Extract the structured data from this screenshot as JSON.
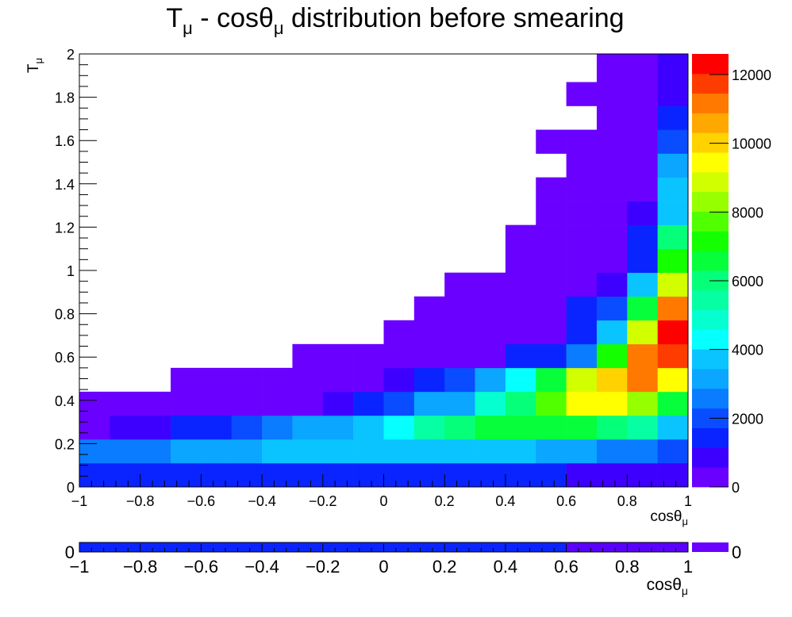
{
  "chart_data": [
    {
      "type": "heatmap",
      "title": {
        "main": "T",
        "sub1": "μ",
        "mid": " - cosθ",
        "sub2": "μ",
        "tail": " distribution before smearing"
      },
      "xlabel": {
        "main": "cosθ",
        "sub": "μ"
      },
      "ylabel": {
        "main": "T",
        "sub": "μ"
      },
      "xlim": [
        -1,
        1
      ],
      "ylim": [
        0,
        2
      ],
      "x_ticks": [
        "−1",
        "−0.8",
        "−0.6",
        "−0.4",
        "−0.2",
        "0",
        "0.2",
        "0.4",
        "0.6",
        "0.8",
        "1"
      ],
      "y_ticks": [
        "0",
        "0.2",
        "0.4",
        "0.6",
        "0.8",
        "1",
        "1.2",
        "1.4",
        "1.6",
        "1.8",
        "2"
      ],
      "x_bin_edges": [
        -1,
        -0.9,
        -0.8,
        -0.7,
        -0.6,
        -0.5,
        -0.4,
        -0.3,
        -0.2,
        -0.1,
        0,
        0.1,
        0.2,
        0.3,
        0.4,
        0.5,
        0.6,
        0.7,
        0.8,
        0.9,
        1
      ],
      "y_bin_edges": [
        0,
        0.11,
        0.22,
        0.33,
        0.44,
        0.55,
        0.66,
        0.77,
        0.88,
        0.99,
        1.1,
        1.21,
        1.32,
        1.43,
        1.54,
        1.65,
        1.76,
        1.87,
        2
      ],
      "z_range": [
        0,
        12600
      ],
      "colorbar_ticks": [
        "0",
        "2000",
        "4000",
        "6000",
        "8000",
        "10000",
        "12000"
      ],
      "z_values": [
        [
          1500,
          1500,
          1500,
          1500,
          1500,
          1500,
          1500,
          1500,
          1500,
          1500,
          1500,
          1500,
          1500,
          1500,
          1500,
          1500,
          900,
          900,
          900,
          900
        ],
        [
          2700,
          2700,
          2700,
          3300,
          3300,
          3300,
          4000,
          4000,
          4000,
          4000,
          4000,
          4000,
          4000,
          4000,
          4000,
          3100,
          3100,
          2700,
          2700,
          2100
        ],
        [
          500,
          1000,
          1000,
          1300,
          1300,
          2000,
          2800,
          3300,
          3300,
          4000,
          4500,
          5600,
          6000,
          6800,
          6800,
          6800,
          6800,
          6200,
          5600,
          4000
        ],
        [
          500,
          500,
          500,
          500,
          500,
          500,
          500,
          500,
          1000,
          1500,
          2200,
          2900,
          3300,
          4800,
          5900,
          7700,
          9500,
          9500,
          8300,
          6800
        ],
        [
          0,
          0,
          0,
          500,
          500,
          500,
          500,
          500,
          500,
          500,
          1000,
          1300,
          2000,
          3300,
          4400,
          6300,
          9000,
          10300,
          11000,
          9500
        ],
        [
          0,
          0,
          0,
          0,
          0,
          0,
          0,
          500,
          500,
          500,
          500,
          500,
          500,
          500,
          1200,
          1600,
          2800,
          7000,
          11000,
          11800
        ],
        [
          0,
          0,
          0,
          0,
          0,
          0,
          0,
          0,
          0,
          0,
          500,
          500,
          500,
          500,
          500,
          500,
          1200,
          3900,
          8900,
          12300
        ],
        [
          0,
          0,
          0,
          0,
          0,
          0,
          0,
          0,
          0,
          0,
          0,
          500,
          500,
          500,
          500,
          500,
          1200,
          1800,
          6300,
          10900
        ],
        [
          0,
          0,
          0,
          0,
          0,
          0,
          0,
          0,
          0,
          0,
          0,
          0,
          500,
          500,
          500,
          500,
          500,
          900,
          3800,
          8900
        ],
        [
          0,
          0,
          0,
          0,
          0,
          0,
          0,
          0,
          0,
          0,
          0,
          0,
          0,
          0,
          500,
          500,
          500,
          500,
          1700,
          7000
        ],
        [
          0,
          0,
          0,
          0,
          0,
          0,
          0,
          0,
          0,
          0,
          0,
          0,
          0,
          0,
          500,
          500,
          500,
          500,
          1200,
          5900
        ],
        [
          0,
          0,
          0,
          0,
          0,
          0,
          0,
          0,
          0,
          0,
          0,
          0,
          0,
          0,
          0,
          500,
          500,
          500,
          900,
          4000
        ],
        [
          0,
          0,
          0,
          0,
          0,
          0,
          0,
          0,
          0,
          0,
          0,
          0,
          0,
          0,
          0,
          500,
          500,
          500,
          500,
          3900
        ],
        [
          0,
          0,
          0,
          0,
          0,
          0,
          0,
          0,
          0,
          0,
          0,
          0,
          0,
          0,
          0,
          0,
          500,
          500,
          500,
          2900
        ],
        [
          0,
          0,
          0,
          0,
          0,
          0,
          0,
          0,
          0,
          0,
          0,
          0,
          0,
          0,
          0,
          500,
          500,
          500,
          500,
          1800
        ],
        [
          0,
          0,
          0,
          0,
          0,
          0,
          0,
          0,
          0,
          0,
          0,
          0,
          0,
          0,
          0,
          0,
          0,
          500,
          500,
          1200
        ],
        [
          0,
          0,
          0,
          0,
          0,
          0,
          0,
          0,
          0,
          0,
          0,
          0,
          0,
          0,
          0,
          0,
          500,
          500,
          500,
          800
        ],
        [
          0,
          0,
          0,
          0,
          0,
          0,
          0,
          0,
          0,
          0,
          0,
          0,
          0,
          0,
          0,
          0,
          0,
          500,
          500,
          800
        ]
      ]
    },
    {
      "type": "heatmap",
      "xlabel": {
        "main": "cosθ",
        "sub": "μ"
      },
      "xlim": [
        -1,
        1
      ],
      "x_ticks": [
        "−1",
        "−0.8",
        "−0.6",
        "−0.4",
        "−0.2",
        "0",
        "0.2",
        "0.4",
        "0.6",
        "0.8",
        "1"
      ],
      "y_tick": "0",
      "colorbar_tick": "0",
      "x_bin_edges": [
        -1,
        -0.9,
        -0.8,
        -0.7,
        -0.6,
        -0.5,
        -0.4,
        -0.3,
        -0.2,
        -0.1,
        0,
        0.1,
        0.2,
        0.3,
        0.4,
        0.5,
        0.6,
        0.7,
        0.8,
        0.9,
        1
      ],
      "bin_colors": [
        "#0a24ff",
        "#0a24ff",
        "#0a24ff",
        "#0a24ff",
        "#0a24ff",
        "#0a24ff",
        "#0a24ff",
        "#0a24ff",
        "#0a24ff",
        "#0a24ff",
        "#0a24ff",
        "#0a24ff",
        "#0a24ff",
        "#0a24ff",
        "#0a24ff",
        "#0a24ff",
        "#5a00ff",
        "#5a00ff",
        "#5a00ff",
        "#5a00ff"
      ],
      "colorbar_color": "#6a00ff"
    }
  ],
  "palette": [
    "#6a00ff",
    "#3d00ff",
    "#0a24ff",
    "#0a4cff",
    "#0a7cff",
    "#0aa6ff",
    "#0ac4ff",
    "#06ffff",
    "#06ffd0",
    "#06ffa2",
    "#06ff78",
    "#06ff3a",
    "#14ff00",
    "#50ff00",
    "#96ff00",
    "#d2ff00",
    "#ffff00",
    "#ffd200",
    "#ffa800",
    "#ff7800",
    "#ff3c00",
    "#ff0000"
  ]
}
